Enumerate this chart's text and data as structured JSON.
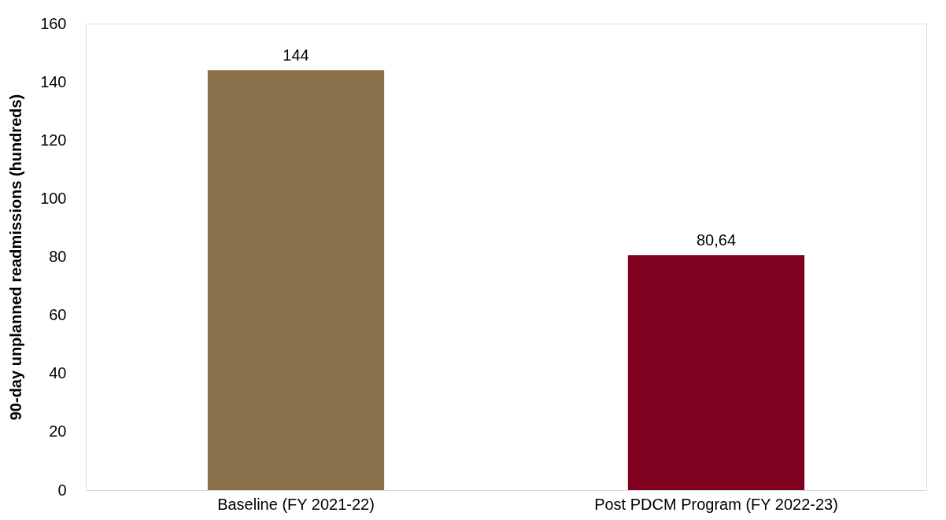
{
  "chart_data": {
    "type": "bar",
    "ylabel": "90-day unplanned readmissions (hundreds)",
    "categories": [
      "Baseline (FY 2021-22)",
      "Post PDCM Program (FY 2022-23)"
    ],
    "values": [
      144,
      80.64
    ],
    "colors": [
      "#8a6f4b",
      "#800020"
    ],
    "value_labels": [
      "144",
      "80,64"
    ],
    "ylim": [
      0,
      160
    ],
    "yticks": [
      0,
      20,
      40,
      60,
      80,
      100,
      120,
      140,
      160
    ]
  }
}
